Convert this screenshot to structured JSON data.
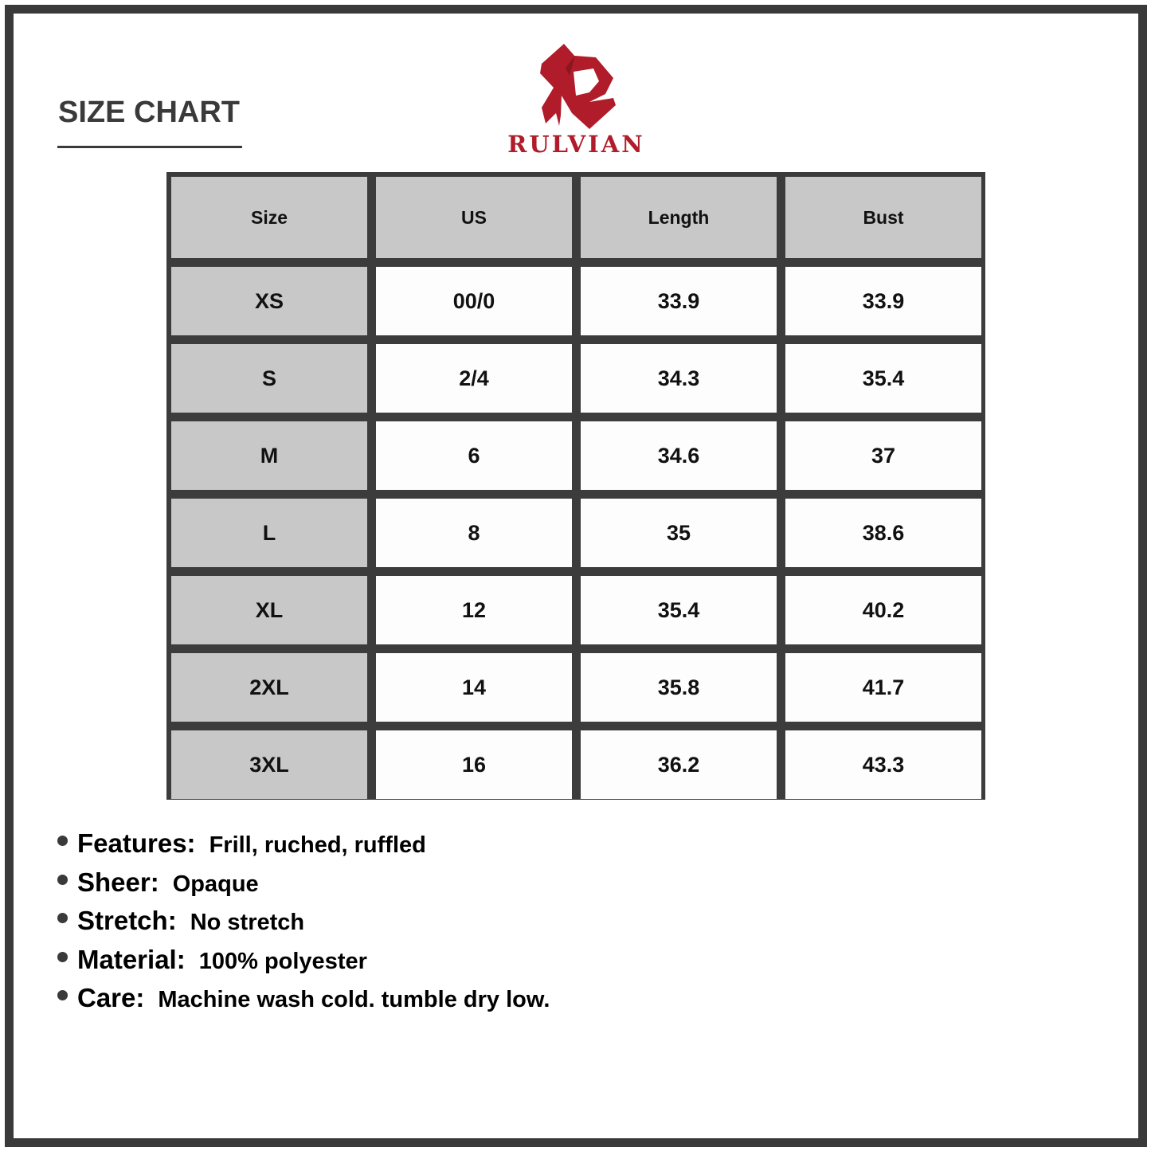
{
  "title": "SIZE CHART",
  "brand": {
    "name": "RULVIAN",
    "color": "#b01c2a",
    "logo": "stylized-R-logo"
  },
  "table": {
    "headers": [
      "Size",
      "US",
      "Length",
      "Bust"
    ],
    "rows": [
      [
        "XS",
        "00/0",
        "33.9",
        "33.9"
      ],
      [
        "S",
        "2/4",
        "34.3",
        "35.4"
      ],
      [
        "M",
        "6",
        "34.6",
        "37"
      ],
      [
        "L",
        "8",
        "35",
        "38.6"
      ],
      [
        "XL",
        "12",
        "35.4",
        "40.2"
      ],
      [
        "2XL",
        "14",
        "35.8",
        "41.7"
      ],
      [
        "3XL",
        "16",
        "36.2",
        "43.3"
      ]
    ]
  },
  "specs": [
    {
      "label": "Features:",
      "value": "Frill, ruched, ruffled"
    },
    {
      "label": "Sheer:",
      "value": "Opaque"
    },
    {
      "label": "Stretch:",
      "value": "No stretch"
    },
    {
      "label": "Material:",
      "value": "100% polyester"
    },
    {
      "label": "Care:",
      "value": "Machine wash cold. tumble dry low."
    }
  ]
}
